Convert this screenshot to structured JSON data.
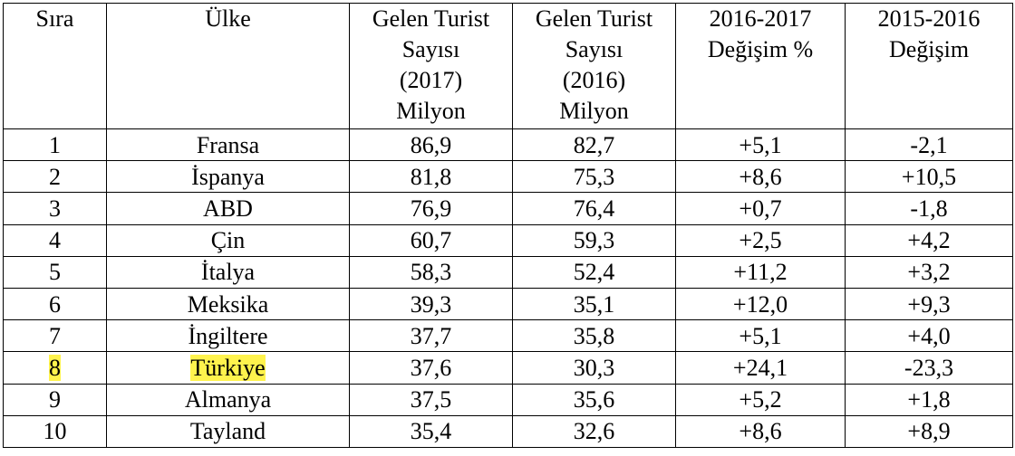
{
  "table": {
    "header": [
      [
        "Sıra"
      ],
      [
        "Ülke"
      ],
      [
        "Gelen Turist",
        "Sayısı",
        "(2017)",
        "Milyon"
      ],
      [
        "Gelen Turist",
        "Sayısı",
        "(2016)",
        "Milyon"
      ],
      [
        "2016-2017",
        "Değişim %"
      ],
      [
        "2015-2016",
        "Değişim"
      ]
    ],
    "rows": [
      [
        "1",
        "Fransa",
        "86,9",
        "82,7",
        "+5,1",
        "-2,1"
      ],
      [
        "2",
        "İspanya",
        "81,8",
        "75,3",
        "+8,6",
        "+10,5"
      ],
      [
        "3",
        "ABD",
        "76,9",
        "76,4",
        "+0,7",
        "-1,8"
      ],
      [
        "4",
        "Çin",
        "60,7",
        "59,3",
        "+2,5",
        "+4,2"
      ],
      [
        "5",
        "İtalya",
        "58,3",
        "52,4",
        "+11,2",
        "+3,2"
      ],
      [
        "6",
        "Meksika",
        "39,3",
        "35,1",
        "+12,0",
        "+9,3"
      ],
      [
        "7",
        "İngiltere",
        "37,7",
        "35,8",
        "+5,1",
        "+4,0"
      ],
      [
        "8",
        "Türkiye",
        "37,6",
        "30,3",
        "+24,1",
        "-23,3"
      ],
      [
        "9",
        "Almanya",
        "37,5",
        "35,6",
        "+5,2",
        "+1,8"
      ],
      [
        "10",
        "Tayland",
        "35,4",
        "32,6",
        "+8,6",
        "+8,9"
      ]
    ]
  }
}
